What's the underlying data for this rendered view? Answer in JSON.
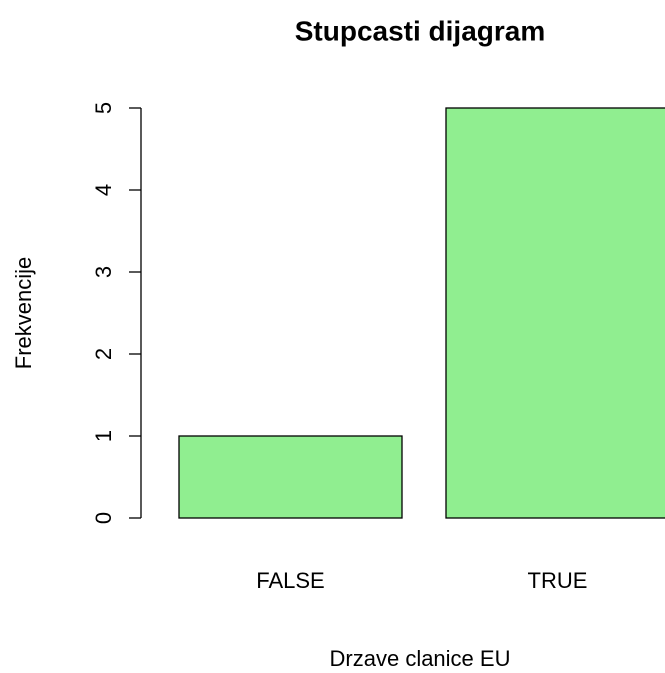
{
  "chart_data": {
    "type": "bar",
    "title": "Stupcasti dijagram",
    "x_label": "Drzave clanice EU",
    "y_label": "Frekvencije",
    "categories": [
      "FALSE",
      "TRUE"
    ],
    "values": [
      1,
      5
    ],
    "color": "#90ee90",
    "ylim": [
      0,
      5
    ],
    "yticks": [
      0,
      1,
      2,
      3,
      4,
      5
    ]
  }
}
